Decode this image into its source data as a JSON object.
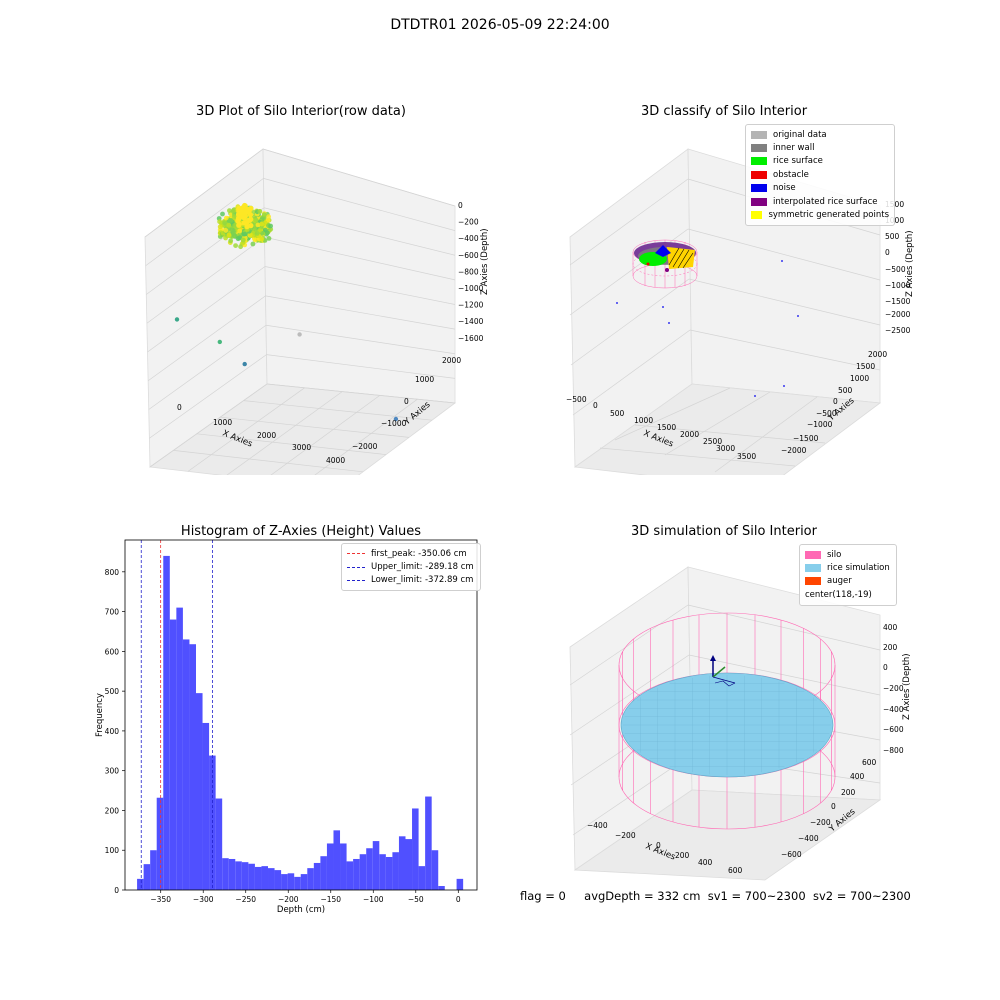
{
  "figure": {
    "suptitle": "DTDTR01 2026-05-09 22:24:00",
    "footer": {
      "flag": "flag = 0",
      "avg_depth": "avgDepth = 332 cm",
      "sv1": "sv1 = 700~2300",
      "sv2": "sv2 = 700~2300"
    }
  },
  "chart_data": [
    {
      "type": "scatter",
      "title": "3D Plot of Silo Interior(row data)",
      "xlabel": "X Axies",
      "ylabel": "Y Axies",
      "zlabel": "Z Axies (Depth)",
      "x_ticks": [
        "0",
        "1000",
        "2000",
        "3000",
        "4000"
      ],
      "y_ticks": [
        "−2000",
        "−1000",
        "0",
        "1000",
        "2000"
      ],
      "z_ticks": [
        "0",
        "−200",
        "−400",
        "−600",
        "−800",
        "−1000",
        "−1200",
        "−1400",
        "−1600"
      ],
      "colormap": "viridis",
      "cluster_note": "dense point cloud near x≈0, z≈-300",
      "outliers": [
        {
          "x": 0,
          "y": 1800,
          "z": -1200
        },
        {
          "x": 600,
          "y": 1400,
          "z": -1150
        },
        {
          "x": 900,
          "y": 1100,
          "z": -1350
        },
        {
          "x": 2700,
          "y": 2000,
          "z": -900
        },
        {
          "x": 3300,
          "y": 300,
          "z": -1100
        },
        {
          "x": 3600,
          "y": -1500,
          "z": -1500
        },
        {
          "x": 3700,
          "y": -1900,
          "z": -1600
        }
      ]
    },
    {
      "type": "scatter",
      "title": "3D classify of Silo Interior",
      "xlabel": "X Axies",
      "ylabel": "Y Axies",
      "zlabel": "Z Axies (Depth)",
      "x_ticks": [
        "−500",
        "0",
        "500",
        "1000",
        "1500",
        "2000",
        "2500",
        "3000",
        "3500"
      ],
      "y_ticks": [
        "−2000",
        "−1500",
        "−1000",
        "−500",
        "0",
        "500",
        "1000",
        "1500",
        "2000"
      ],
      "z_ticks": [
        "1500",
        "1000",
        "500",
        "0",
        "−500",
        "−1000",
        "−1500",
        "−2000",
        "−2500"
      ],
      "legend": [
        {
          "label": "original data",
          "color": "#b4b4b4"
        },
        {
          "label": "inner wall",
          "color": "#808080"
        },
        {
          "label": "rice surface",
          "color": "#00ee00"
        },
        {
          "label": "obstacle",
          "color": "#ee0000"
        },
        {
          "label": "noise",
          "color": "#0000ee"
        },
        {
          "label": "interpolated rice surface",
          "color": "#800080"
        },
        {
          "label": "symmetric generated points",
          "color": "#ffff00"
        }
      ]
    },
    {
      "type": "bar",
      "title": "Histogram of Z-Axies (Height) Values",
      "xlabel": "Depth (cm)",
      "ylabel": "Frequency",
      "xlim": [
        -392,
        22
      ],
      "ylim": [
        0,
        880
      ],
      "x_ticks": [
        -350,
        -300,
        -250,
        -200,
        -150,
        -100,
        -50,
        0
      ],
      "y_ticks": [
        0,
        100,
        200,
        300,
        400,
        500,
        600,
        700,
        800
      ],
      "bin_width": 7.7,
      "bins": [
        {
          "x0": -377.8,
          "count": 28
        },
        {
          "x0": -370.1,
          "count": 65
        },
        {
          "x0": -362.4,
          "count": 100
        },
        {
          "x0": -354.7,
          "count": 232
        },
        {
          "x0": -347.0,
          "count": 840
        },
        {
          "x0": -339.3,
          "count": 680
        },
        {
          "x0": -331.6,
          "count": 710
        },
        {
          "x0": -323.9,
          "count": 630
        },
        {
          "x0": -316.2,
          "count": 618
        },
        {
          "x0": -308.5,
          "count": 495
        },
        {
          "x0": -300.8,
          "count": 420
        },
        {
          "x0": -293.1,
          "count": 338
        },
        {
          "x0": -285.4,
          "count": 230
        },
        {
          "x0": -277.7,
          "count": 80
        },
        {
          "x0": -270.0,
          "count": 78
        },
        {
          "x0": -262.3,
          "count": 72
        },
        {
          "x0": -254.6,
          "count": 70
        },
        {
          "x0": -246.9,
          "count": 66
        },
        {
          "x0": -239.2,
          "count": 58
        },
        {
          "x0": -231.5,
          "count": 60
        },
        {
          "x0": -223.8,
          "count": 55
        },
        {
          "x0": -216.1,
          "count": 50
        },
        {
          "x0": -208.4,
          "count": 40
        },
        {
          "x0": -200.7,
          "count": 42
        },
        {
          "x0": -193.0,
          "count": 33
        },
        {
          "x0": -185.3,
          "count": 40
        },
        {
          "x0": -177.6,
          "count": 55
        },
        {
          "x0": -169.9,
          "count": 68
        },
        {
          "x0": -162.2,
          "count": 85
        },
        {
          "x0": -154.5,
          "count": 117
        },
        {
          "x0": -146.8,
          "count": 150
        },
        {
          "x0": -139.1,
          "count": 117
        },
        {
          "x0": -131.4,
          "count": 72
        },
        {
          "x0": -123.7,
          "count": 78
        },
        {
          "x0": -116.0,
          "count": 90
        },
        {
          "x0": -108.3,
          "count": 105
        },
        {
          "x0": -100.6,
          "count": 123
        },
        {
          "x0": -92.9,
          "count": 90
        },
        {
          "x0": -85.2,
          "count": 83
        },
        {
          "x0": -77.5,
          "count": 95
        },
        {
          "x0": -69.8,
          "count": 135
        },
        {
          "x0": -62.1,
          "count": 128
        },
        {
          "x0": -54.4,
          "count": 205
        },
        {
          "x0": -46.7,
          "count": 60
        },
        {
          "x0": -39.0,
          "count": 235
        },
        {
          "x0": -31.3,
          "count": 100
        },
        {
          "x0": -23.6,
          "count": 10
        },
        {
          "x0": -15.9,
          "count": 0
        },
        {
          "x0": -8.2,
          "count": 0
        },
        {
          "x0": -2.0,
          "count": 28
        }
      ],
      "bar_color": "#5050ff",
      "reference_lines": [
        {
          "label": "first_peak: -350.06 cm",
          "value": -350.06,
          "color": "#ee3333"
        },
        {
          "label": "Upper_limit: -289.18 cm",
          "value": -289.18,
          "color": "#2222cc"
        },
        {
          "label": "Lower_limit: -372.89 cm",
          "value": -372.89,
          "color": "#2222cc"
        }
      ]
    },
    {
      "type": "scatter",
      "title": "3D simulation of Silo Interior",
      "xlabel": "X Axies",
      "ylabel": "Y Axies",
      "zlabel": "Z Axies (Depth)",
      "x_ticks": [
        "−400",
        "−200",
        "0",
        "200",
        "400",
        "600"
      ],
      "y_ticks": [
        "−600",
        "−400",
        "−200",
        "0",
        "200",
        "400",
        "600"
      ],
      "z_ticks": [
        "400",
        "200",
        "0",
        "−200",
        "−400",
        "−600",
        "−800"
      ],
      "legend": [
        {
          "label": "silo",
          "color": "#ff69b4"
        },
        {
          "label": "rice simulation",
          "color": "#87ceeb"
        },
        {
          "label": "auger",
          "color": "#ff4500"
        },
        {
          "label": "center(118,-19)",
          "color": "transparent"
        }
      ]
    }
  ]
}
